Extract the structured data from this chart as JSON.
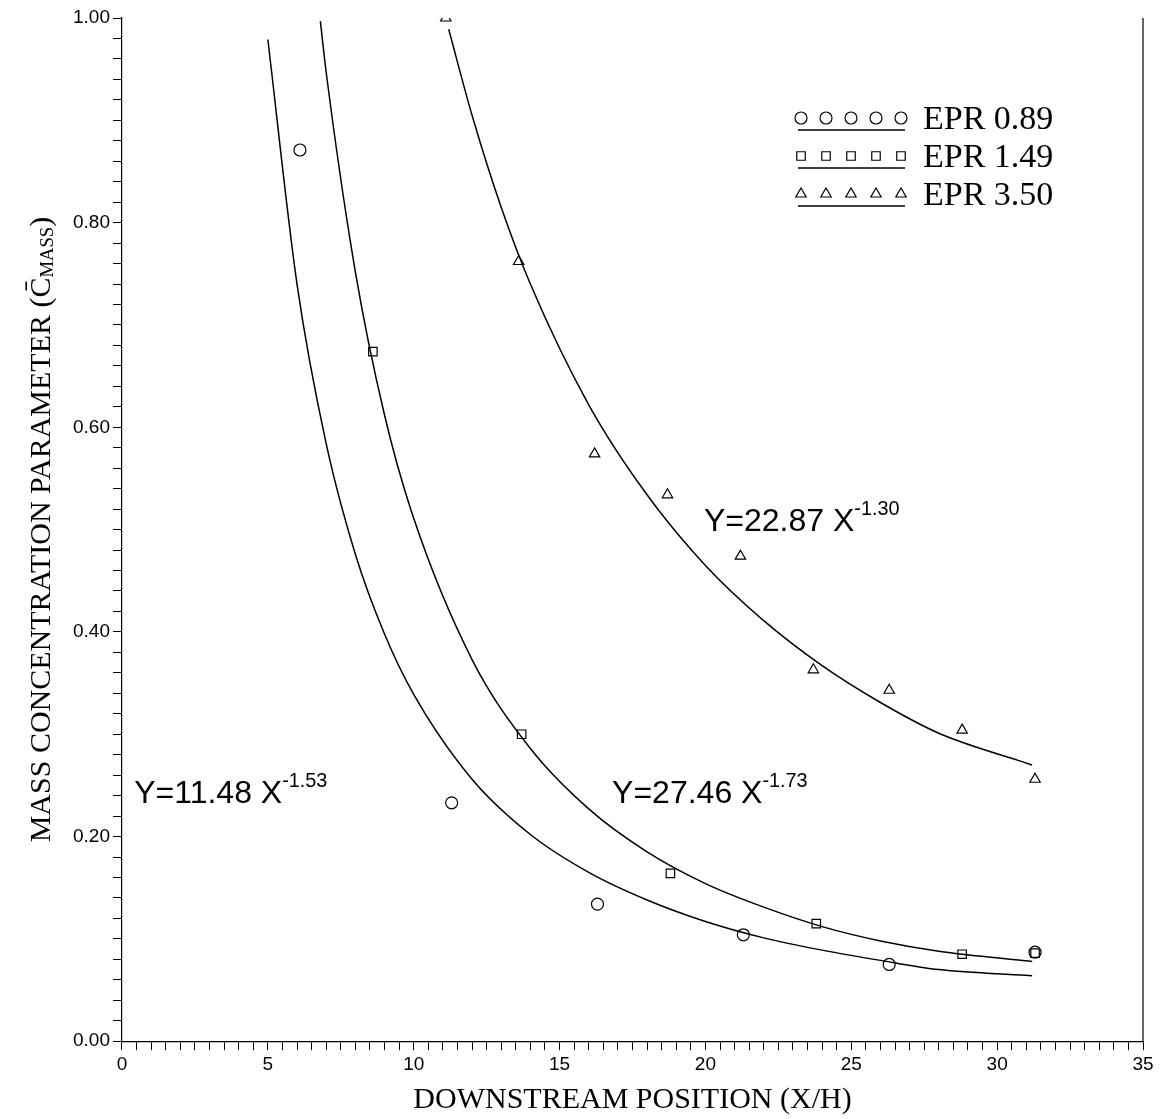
{
  "chart_data": {
    "type": "scatter",
    "xlabel": "DOWNSTREAM POSITION (X/H)",
    "ylabel": "MASS CONCENTRATION PARAMETER (C̄$_{MASS}$)",
    "xlim": [
      0,
      35
    ],
    "ylim": [
      0,
      1
    ],
    "xticks": [
      0,
      {
        "value": 0.5,
        "label": null
      },
      {
        "value": 1,
        "label": null
      },
      {
        "value": 1.5,
        "label": null
      },
      {
        "value": 2,
        "label": null
      },
      {
        "value": 2.5,
        "label": null
      },
      {
        "value": 3,
        "label": null
      },
      {
        "value": 3.5,
        "label": null
      },
      {
        "value": 4,
        "label": null
      },
      {
        "value": 4.5,
        "label": null
      },
      5,
      {
        "value": 5.5,
        "label": null
      },
      {
        "value": 6,
        "label": null
      },
      {
        "value": 6.5,
        "label": null
      },
      {
        "value": 7,
        "label": null
      },
      {
        "value": 7.5,
        "label": null
      },
      {
        "value": 8,
        "label": null
      },
      {
        "value": 8.5,
        "label": null
      },
      {
        "value": 9,
        "label": null
      },
      {
        "value": 9.5,
        "label": null
      },
      10,
      {
        "value": 10.5,
        "label": null
      },
      {
        "value": 11,
        "label": null
      },
      {
        "value": 11.5,
        "label": null
      },
      {
        "value": 12,
        "label": null
      },
      {
        "value": 12.5,
        "label": null
      },
      {
        "value": 13,
        "label": null
      },
      {
        "value": 13.5,
        "label": null
      },
      {
        "value": 14,
        "label": null
      },
      {
        "value": 14.5,
        "label": null
      },
      15,
      {
        "value": 15.5,
        "label": null
      },
      {
        "value": 16,
        "label": null
      },
      {
        "value": 16.5,
        "label": null
      },
      {
        "value": 17,
        "label": null
      },
      {
        "value": 17.5,
        "label": null
      },
      {
        "value": 18,
        "label": null
      },
      {
        "value": 18.5,
        "label": null
      },
      {
        "value": 19,
        "label": null
      },
      {
        "value": 19.5,
        "label": null
      },
      20,
      {
        "value": 20.5,
        "label": null
      },
      {
        "value": 21,
        "label": null
      },
      {
        "value": 21.5,
        "label": null
      },
      {
        "value": 22,
        "label": null
      },
      {
        "value": 22.5,
        "label": null
      },
      {
        "value": 23,
        "label": null
      },
      {
        "value": 23.5,
        "label": null
      },
      {
        "value": 24,
        "label": null
      },
      {
        "value": 24.5,
        "label": null
      },
      25,
      {
        "value": 25.5,
        "label": null
      },
      {
        "value": 26,
        "label": null
      },
      {
        "value": 26.5,
        "label": null
      },
      {
        "value": 27,
        "label": null
      },
      {
        "value": 27.5,
        "label": null
      },
      {
        "value": 28,
        "label": null
      },
      {
        "value": 28.5,
        "label": null
      },
      {
        "value": 29,
        "label": null
      },
      {
        "value": 29.5,
        "label": null
      },
      30,
      {
        "value": 30.5,
        "label": null
      },
      {
        "value": 31,
        "label": null
      },
      {
        "value": 31.5,
        "label": null
      },
      {
        "value": 32,
        "label": null
      },
      {
        "value": 32.5,
        "label": null
      },
      {
        "value": 33,
        "label": null
      },
      {
        "value": 33.5,
        "label": null
      },
      {
        "value": 34,
        "label": null
      },
      {
        "value": 34.5,
        "label": null
      },
      35
    ],
    "yticks": [
      {
        "value": 0,
        "label": "0.00"
      },
      {
        "value": 0.02,
        "label": null
      },
      {
        "value": 0.04,
        "label": null
      },
      {
        "value": 0.06,
        "label": null
      },
      {
        "value": 0.08,
        "label": null
      },
      {
        "value": 0.1,
        "label": null
      },
      {
        "value": 0.12,
        "label": null
      },
      {
        "value": 0.14,
        "label": null
      },
      {
        "value": 0.16,
        "label": null
      },
      {
        "value": 0.18,
        "label": null
      },
      {
        "value": 0.2,
        "label": "0.20"
      },
      {
        "value": 0.22,
        "label": null
      },
      {
        "value": 0.24,
        "label": null
      },
      {
        "value": 0.26,
        "label": null
      },
      {
        "value": 0.28,
        "label": null
      },
      {
        "value": 0.3,
        "label": null
      },
      {
        "value": 0.32,
        "label": null
      },
      {
        "value": 0.34,
        "label": null
      },
      {
        "value": 0.36,
        "label": null
      },
      {
        "value": 0.38,
        "label": null
      },
      {
        "value": 0.4,
        "label": "0.40"
      },
      {
        "value": 0.42,
        "label": null
      },
      {
        "value": 0.44,
        "label": null
      },
      {
        "value": 0.46,
        "label": null
      },
      {
        "value": 0.48,
        "label": null
      },
      {
        "value": 0.5,
        "label": null
      },
      {
        "value": 0.52,
        "label": null
      },
      {
        "value": 0.54,
        "label": null
      },
      {
        "value": 0.56,
        "label": null
      },
      {
        "value": 0.58,
        "label": null
      },
      {
        "value": 0.6,
        "label": "0.60"
      },
      {
        "value": 0.62,
        "label": null
      },
      {
        "value": 0.64,
        "label": null
      },
      {
        "value": 0.66,
        "label": null
      },
      {
        "value": 0.68,
        "label": null
      },
      {
        "value": 0.7,
        "label": null
      },
      {
        "value": 0.72,
        "label": null
      },
      {
        "value": 0.74,
        "label": null
      },
      {
        "value": 0.76,
        "label": null
      },
      {
        "value": 0.78,
        "label": null
      },
      {
        "value": 0.8,
        "label": "0.80"
      },
      {
        "value": 0.82,
        "label": null
      },
      {
        "value": 0.84,
        "label": null
      },
      {
        "value": 0.86,
        "label": null
      },
      {
        "value": 0.88,
        "label": null
      },
      {
        "value": 0.9,
        "label": null
      },
      {
        "value": 0.92,
        "label": null
      },
      {
        "value": 0.94,
        "label": null
      },
      {
        "value": 0.96,
        "label": null
      },
      {
        "value": 0.98,
        "label": null
      },
      {
        "value": 1,
        "label": "1.00"
      }
    ],
    "grid": false,
    "legend": "top right",
    "series": [
      {
        "name": "EPR 0.89",
        "color": "#000000",
        "marker": "circle",
        "x": [
          6.1,
          11.3,
          16.3,
          21.3,
          26.3,
          31.3
        ],
        "values": [
          0.871,
          0.233,
          0.134,
          0.104,
          0.075,
          0.087
        ]
      },
      {
        "name": "EPR 1.49",
        "color": "#000000",
        "marker": "square",
        "x": [
          8.6,
          13.7,
          18.8,
          23.8,
          28.8,
          31.3
        ],
        "values": [
          0.674,
          0.3,
          0.164,
          0.115,
          0.085,
          0.086
        ]
      },
      {
        "name": "EPR 3.50",
        "color": "#000000",
        "marker": "triangle",
        "x": [
          11.1,
          13.6,
          16.2,
          18.7,
          21.2,
          23.7,
          26.3,
          28.8,
          31.3
        ],
        "values": [
          1.0,
          0.762,
          0.574,
          0.534,
          0.474,
          0.363,
          0.343,
          0.304,
          0.256
        ]
      },
      {
        "type": "line",
        "color": "#000000",
        "marker": "none",
        "x": [
          5,
          6,
          7,
          8,
          9,
          10,
          12,
          14,
          16,
          18,
          20,
          22,
          24,
          26,
          28,
          31.2
        ],
        "values": [
          0.979,
          0.74,
          0.584,
          0.476,
          0.398,
          0.339,
          0.256,
          0.202,
          0.165,
          0.138,
          0.117,
          0.101,
          0.089,
          0.079,
          0.07,
          0.064
        ]
      },
      {
        "type": "line",
        "color": "#000000",
        "marker": "none",
        "x": [
          6.8,
          7,
          8,
          9,
          10,
          12,
          14,
          16,
          18,
          20,
          22,
          24,
          26,
          28,
          31.2
        ],
        "values": [
          0.997,
          0.947,
          0.752,
          0.612,
          0.511,
          0.373,
          0.286,
          0.227,
          0.185,
          0.154,
          0.131,
          0.112,
          0.098,
          0.088,
          0.078
        ]
      },
      {
        "type": "line",
        "color": "#000000",
        "marker": "none",
        "x": [
          11.2,
          12,
          13,
          14,
          16,
          18,
          20,
          22,
          24,
          26,
          28,
          31.2
        ],
        "values": [
          0.989,
          0.905,
          0.815,
          0.74,
          0.622,
          0.534,
          0.465,
          0.411,
          0.367,
          0.331,
          0.301,
          0.27
        ]
      }
    ],
    "annotations": [
      "Y=22.87 X$^{-1.30}$",
      "Y=11.48 X$^{-1.53}$",
      "Y=27.46 X$^{-1.73}$"
    ]
  }
}
